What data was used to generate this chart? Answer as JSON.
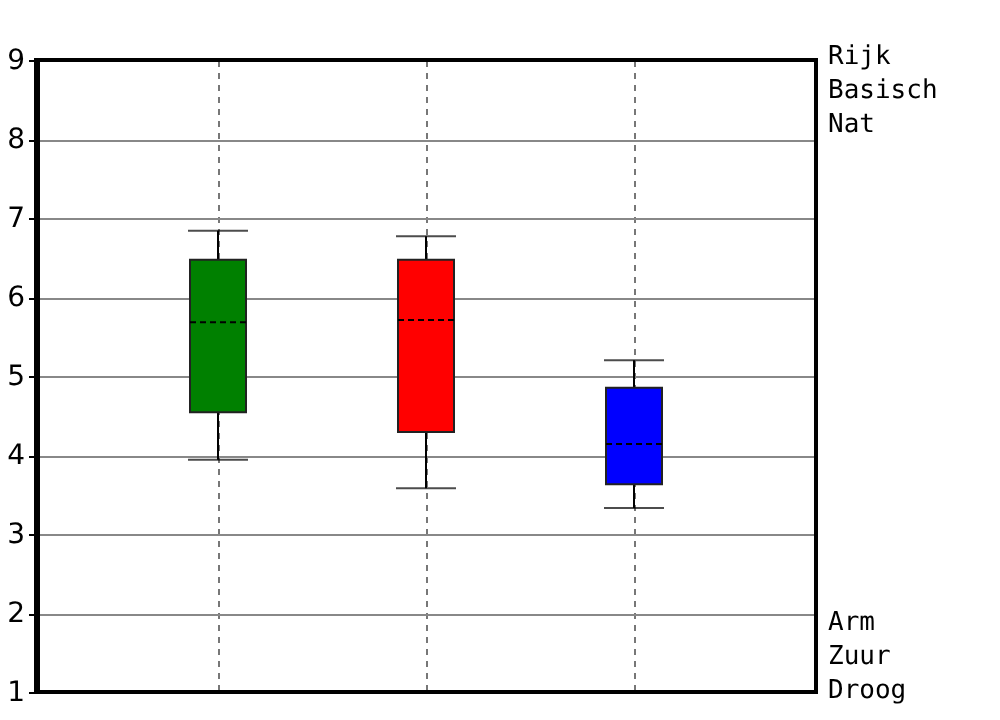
{
  "chart_data": {
    "type": "box",
    "categories": [
      null,
      null,
      null
    ],
    "boxes": [
      {
        "low": 3.94,
        "q1": 4.54,
        "median": 5.68,
        "q3": 6.47,
        "high": 6.84
      },
      {
        "low": 3.58,
        "q1": 4.29,
        "median": 5.71,
        "q3": 6.47,
        "high": 6.77
      },
      {
        "low": 3.33,
        "q1": 3.63,
        "median": 4.14,
        "q3": 4.85,
        "high": 5.2
      }
    ],
    "colors": [
      "#008000",
      "#ff0000",
      "#0000ff"
    ],
    "ylim": [
      1,
      9
    ],
    "yticks": [
      1,
      2,
      3,
      4,
      5,
      6,
      7,
      8,
      9
    ],
    "grid": true,
    "tick_labels": "y",
    "annotations": [
      "Rijk\nBasisch\nNat",
      "Arm\nZuur\nDroog"
    ]
  }
}
